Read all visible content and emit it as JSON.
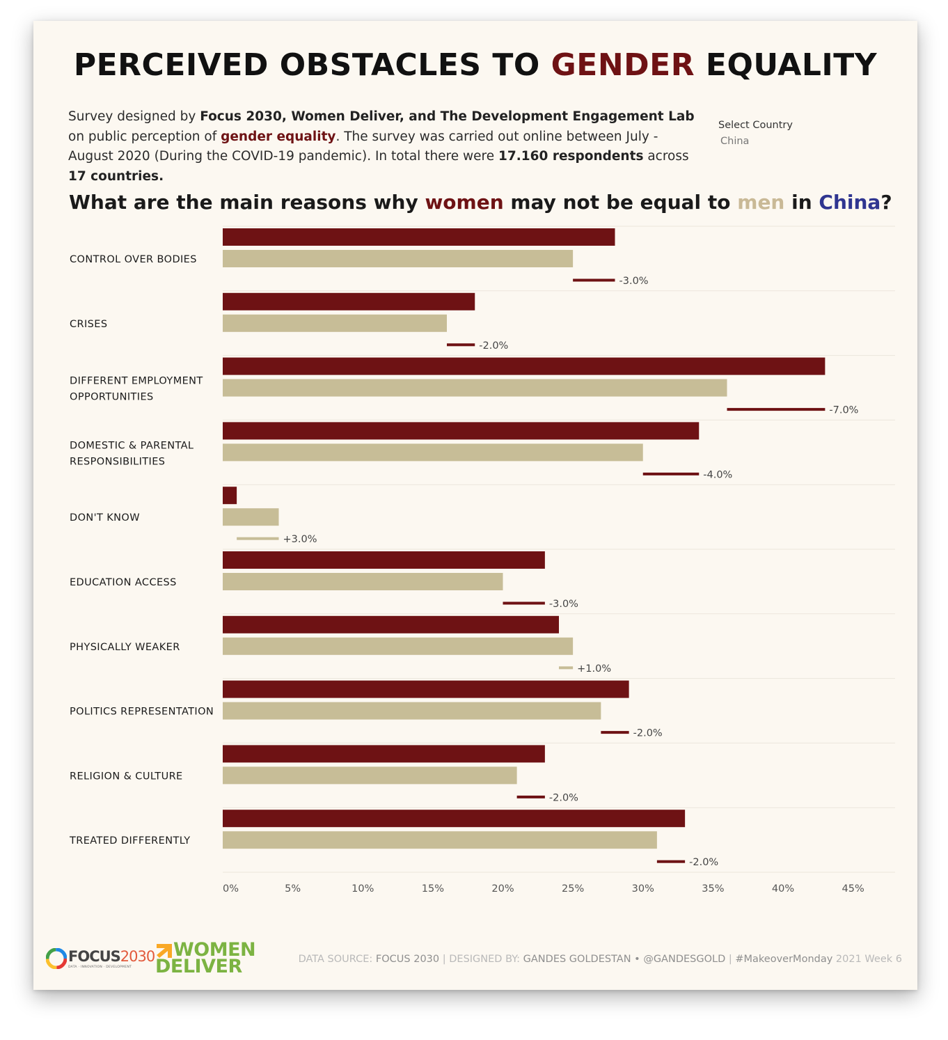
{
  "header": {
    "title_part1": "PERCEIVED OBSTACLES TO ",
    "title_accent": "GENDER",
    "title_part2": " EQUALITY"
  },
  "intro": {
    "t1": "Survey designed by ",
    "b1": "Focus 2030, Women Deliver, and The Development Engagement Lab",
    "t2": " on public perception of ",
    "accent": "gender equality",
    "t3": ". The survey was carried out online between July - August 2020 (During the COVID-19 pandemic). In total there were ",
    "b2": "17.160 respondents",
    "t4": " across ",
    "b3": "17 countries."
  },
  "filter": {
    "label": "Select Country",
    "value": "China"
  },
  "question": {
    "p1": "What are the main reasons why ",
    "women": "women",
    "p2": " may not be equal to ",
    "men": "men",
    "p3": " in ",
    "country": "China",
    "p4": "?"
  },
  "colors": {
    "women": "#6e1214",
    "men": "#c7bd97",
    "country": "#2f3590",
    "gridline": "#ebe6dc",
    "background": "#fcf8f1"
  },
  "chart_data": {
    "type": "bar",
    "orientation": "horizontal",
    "categories": [
      [
        "CONTROL OVER BODIES"
      ],
      [
        "CRISES"
      ],
      [
        "DIFFERENT EMPLOYMENT",
        "OPPORTUNITIES"
      ],
      [
        "DOMESTIC & PARENTAL",
        "RESPONSIBILITIES"
      ],
      [
        "DON'T KNOW"
      ],
      [
        "EDUCATION ACCESS"
      ],
      [
        "PHYSICALLY WEAKER"
      ],
      [
        "POLITICS REPRESENTATION"
      ],
      [
        "RELIGION & CULTURE"
      ],
      [
        "TREATED DIFFERENTLY"
      ]
    ],
    "series": [
      {
        "values": [
          28,
          18,
          43,
          34,
          1,
          23,
          24,
          29,
          23,
          33
        ]
      },
      {
        "values": [
          25,
          16,
          36,
          30,
          4,
          20,
          25,
          27,
          21,
          31
        ]
      }
    ],
    "differences": [
      "-3.0%",
      "-2.0%",
      "-7.0%",
      "-4.0%",
      "+3.0%",
      "-3.0%",
      "+1.0%",
      "-2.0%",
      "-2.0%",
      "-2.0%"
    ],
    "xticks": [
      "0%",
      "5%",
      "10%",
      "15%",
      "20%",
      "25%",
      "30%",
      "35%",
      "40%",
      "45%"
    ],
    "xlim": [
      0,
      48
    ],
    "grid": "horizontal-separators"
  },
  "footer": {
    "l1": "DATA SOURCE: ",
    "s1": "FOCUS 2030",
    "sep1": "  |  DESIGNED BY: ",
    "s2": "GANDES GOLDESTAN • @GANDESGOLD",
    "sep2": "  |  ",
    "s3": "#MakeoverMonday",
    "l2": " 2021 Week 6"
  },
  "logos": {
    "focus_word": "FOCUS",
    "focus_num": "2030",
    "focus_sub": "DATA · INNOVATION · DEVELOPMENT",
    "wd_line1": "WOMEN",
    "wd_line2": "DELIVER"
  }
}
